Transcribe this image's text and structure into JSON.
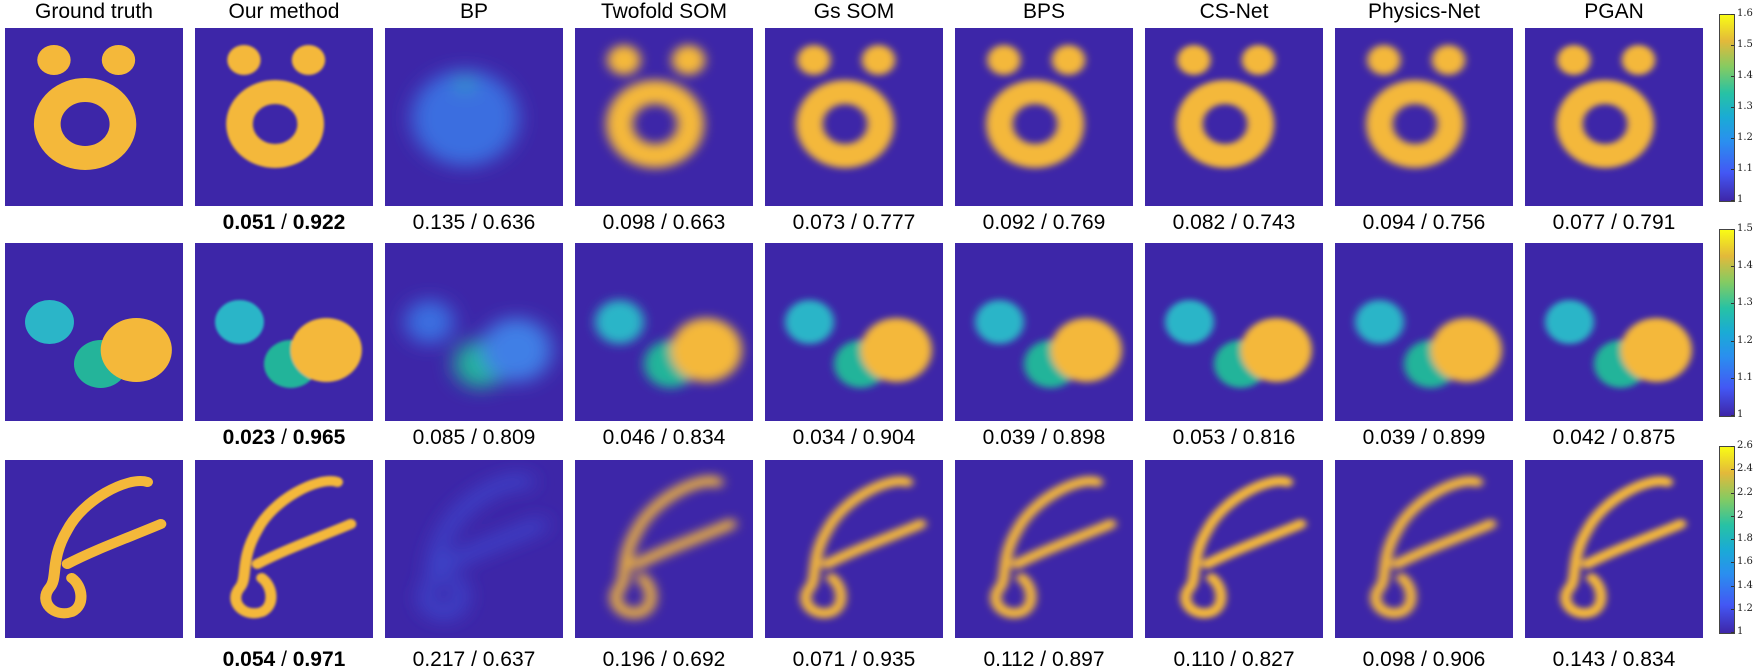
{
  "columns": [
    "Ground truth",
    "Our method",
    "BP",
    "Twofold SOM",
    "Gs SOM",
    "BPS",
    "CS-Net",
    "Physics-Net",
    "PGAN"
  ],
  "rows": [
    {
      "metrics": [
        null,
        {
          "a": "0.051",
          "b": "0.922",
          "bold": true
        },
        {
          "a": "0.135",
          "b": "0.636"
        },
        {
          "a": "0.098",
          "b": "0.663"
        },
        {
          "a": "0.073",
          "b": "0.777"
        },
        {
          "a": "0.092",
          "b": "0.769"
        },
        {
          "a": "0.082",
          "b": "0.743"
        },
        {
          "a": "0.094",
          "b": "0.756"
        },
        {
          "a": "0.077",
          "b": "0.791"
        }
      ],
      "colorbar": [
        "1.6",
        "1.5",
        "1.4",
        "1.3",
        "1.2",
        "1.1",
        "1"
      ]
    },
    {
      "metrics": [
        null,
        {
          "a": "0.023",
          "b": "0.965",
          "bold": true
        },
        {
          "a": "0.085",
          "b": "0.809"
        },
        {
          "a": "0.046",
          "b": "0.834"
        },
        {
          "a": "0.034",
          "b": "0.904"
        },
        {
          "a": "0.039",
          "b": "0.898"
        },
        {
          "a": "0.053",
          "b": "0.816"
        },
        {
          "a": "0.039",
          "b": "0.899"
        },
        {
          "a": "0.042",
          "b": "0.875"
        }
      ],
      "colorbar": [
        "1.5",
        "1.4",
        "1.3",
        "1.2",
        "1.1",
        "1"
      ]
    },
    {
      "metrics": [
        null,
        {
          "a": "0.054",
          "b": "0.971",
          "bold": true
        },
        {
          "a": "0.217",
          "b": "0.637"
        },
        {
          "a": "0.196",
          "b": "0.692"
        },
        {
          "a": "0.071",
          "b": "0.935"
        },
        {
          "a": "0.112",
          "b": "0.897"
        },
        {
          "a": "0.110",
          "b": "0.827"
        },
        {
          "a": "0.098",
          "b": "0.906"
        },
        {
          "a": "0.143",
          "b": "0.834"
        }
      ],
      "colorbar": [
        "2.6",
        "2.4",
        "2.2",
        "2",
        "1.8",
        "1.6",
        "1.4",
        "1.2",
        "1"
      ]
    }
  ],
  "colors": {
    "background": "#3d26a8",
    "high": "#f4b83a",
    "mid": "#2bb5c8",
    "teal": "#24b49a"
  }
}
